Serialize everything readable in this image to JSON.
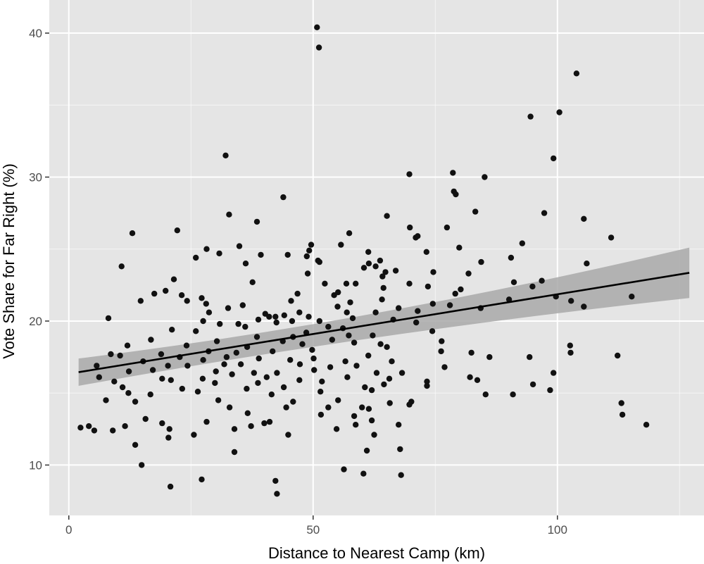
{
  "chart_data": {
    "type": "scatter",
    "xlabel": "Distance to Nearest Camp (km)",
    "ylabel": "Vote Share for Far Right (%)",
    "xlim": [
      -4,
      130
    ],
    "ylim": [
      6.5,
      42.3
    ],
    "x_ticks": [
      0,
      50,
      100
    ],
    "y_ticks": [
      10,
      20,
      30,
      40
    ],
    "x_minor_ticks": [
      25,
      75,
      125
    ],
    "y_minor_ticks": [
      15,
      25,
      35
    ],
    "grid": true,
    "legend": "none",
    "colors": {
      "panel_background": "#e5e5e5",
      "grid": "#ffffff",
      "points": "#111111",
      "fit_line": "#000000",
      "confidence_band": "#a9a9a9"
    },
    "fit": {
      "method": "linear",
      "x": [
        2,
        127
      ],
      "y": [
        16.45,
        23.35
      ],
      "band_lower_at_ends": [
        15.5,
        21.6
      ],
      "band_upper_at_ends": [
        17.4,
        25.1
      ]
    },
    "points": [
      [
        50.8,
        40.4
      ],
      [
        51.2,
        39.0
      ],
      [
        103.9,
        37.2
      ],
      [
        100.4,
        34.5
      ],
      [
        94.5,
        34.2
      ],
      [
        99.2,
        31.3
      ],
      [
        32.1,
        31.5
      ],
      [
        69.7,
        30.2
      ],
      [
        78.6,
        30.3
      ],
      [
        85.1,
        30.0
      ],
      [
        78.8,
        29.0
      ],
      [
        79.2,
        28.8
      ],
      [
        43.9,
        28.6
      ],
      [
        83.2,
        27.6
      ],
      [
        97.3,
        27.5
      ],
      [
        32.8,
        27.4
      ],
      [
        65.1,
        27.3
      ],
      [
        105.4,
        27.1
      ],
      [
        38.5,
        26.9
      ],
      [
        69.8,
        26.5
      ],
      [
        77.4,
        26.5
      ],
      [
        22.2,
        26.3
      ],
      [
        13.0,
        26.1
      ],
      [
        57.4,
        26.1
      ],
      [
        71.0,
        25.8
      ],
      [
        71.4,
        25.9
      ],
      [
        111.0,
        25.8
      ],
      [
        92.8,
        25.4
      ],
      [
        49.6,
        25.3
      ],
      [
        34.9,
        25.2
      ],
      [
        79.9,
        25.1
      ],
      [
        55.7,
        25.3
      ],
      [
        28.2,
        25.0
      ],
      [
        49.2,
        24.9
      ],
      [
        73.2,
        24.8
      ],
      [
        61.3,
        24.8
      ],
      [
        26.0,
        24.4
      ],
      [
        30.8,
        24.7
      ],
      [
        44.8,
        24.6
      ],
      [
        39.3,
        24.6
      ],
      [
        48.7,
        24.5
      ],
      [
        90.5,
        24.4
      ],
      [
        51.0,
        24.2
      ],
      [
        51.3,
        24.1
      ],
      [
        63.7,
        24.2
      ],
      [
        36.2,
        24.0
      ],
      [
        61.4,
        24.0
      ],
      [
        84.4,
        24.1
      ],
      [
        106.0,
        24.0
      ],
      [
        10.8,
        23.8
      ],
      [
        60.4,
        23.7
      ],
      [
        64.8,
        23.4
      ],
      [
        62.8,
        23.8
      ],
      [
        66.9,
        23.5
      ],
      [
        74.6,
        23.4
      ],
      [
        48.9,
        23.3
      ],
      [
        81.8,
        23.3
      ],
      [
        64.2,
        23.1
      ],
      [
        96.8,
        22.8
      ],
      [
        69.7,
        22.6
      ],
      [
        37.6,
        22.7
      ],
      [
        52.4,
        22.6
      ],
      [
        56.8,
        22.6
      ],
      [
        91.1,
        22.7
      ],
      [
        58.7,
        22.6
      ],
      [
        94.9,
        22.4
      ],
      [
        21.5,
        22.9
      ],
      [
        64.4,
        22.3
      ],
      [
        19.8,
        22.1
      ],
      [
        80.2,
        22.2
      ],
      [
        17.5,
        21.9
      ],
      [
        46.8,
        21.9
      ],
      [
        54.3,
        21.8
      ],
      [
        55.1,
        22.0
      ],
      [
        23.1,
        21.8
      ],
      [
        27.2,
        21.6
      ],
      [
        79.1,
        21.9
      ],
      [
        99.7,
        21.7
      ],
      [
        64.1,
        21.5
      ],
      [
        90.1,
        21.5
      ],
      [
        102.8,
        21.4
      ],
      [
        115.2,
        21.7
      ],
      [
        14.7,
        21.4
      ],
      [
        45.5,
        21.4
      ],
      [
        57.6,
        21.3
      ],
      [
        24.2,
        21.4
      ],
      [
        74.5,
        21.2
      ],
      [
        28.1,
        21.2
      ],
      [
        35.6,
        21.1
      ],
      [
        78.0,
        21.1
      ],
      [
        55.0,
        21.0
      ],
      [
        84.3,
        20.9
      ],
      [
        105.4,
        21.0
      ],
      [
        32.6,
        20.9
      ],
      [
        67.5,
        20.9
      ],
      [
        47.2,
        20.6
      ],
      [
        56.9,
        20.6
      ],
      [
        62.8,
        20.6
      ],
      [
        71.4,
        20.7
      ],
      [
        40.2,
        20.5
      ],
      [
        28.7,
        20.6
      ],
      [
        49.1,
        20.3
      ],
      [
        42.3,
        20.3
      ],
      [
        58.1,
        20.2
      ],
      [
        44.1,
        20.4
      ],
      [
        66.4,
        20.1
      ],
      [
        8.1,
        20.2
      ],
      [
        41.0,
        20.3
      ],
      [
        38.8,
        20.1
      ],
      [
        27.5,
        20.0
      ],
      [
        45.7,
        20.0
      ],
      [
        51.3,
        20.0
      ],
      [
        30.9,
        19.8
      ],
      [
        34.7,
        19.8
      ],
      [
        53.1,
        19.6
      ],
      [
        36.1,
        19.6
      ],
      [
        56.1,
        19.5
      ],
      [
        71.1,
        19.9
      ],
      [
        42.5,
        19.9
      ],
      [
        26.0,
        19.3
      ],
      [
        21.1,
        19.4
      ],
      [
        62.2,
        19.0
      ],
      [
        48.6,
        19.2
      ],
      [
        57.3,
        19.0
      ],
      [
        45.9,
        18.9
      ],
      [
        74.4,
        19.3
      ],
      [
        16.8,
        18.7
      ],
      [
        30.3,
        18.6
      ],
      [
        38.5,
        18.9
      ],
      [
        53.9,
        18.7
      ],
      [
        43.8,
        18.6
      ],
      [
        58.4,
        18.5
      ],
      [
        63.8,
        18.4
      ],
      [
        12.0,
        18.3
      ],
      [
        24.1,
        18.3
      ],
      [
        36.5,
        18.2
      ],
      [
        47.8,
        18.4
      ],
      [
        76.3,
        18.6
      ],
      [
        102.6,
        18.3
      ],
      [
        76.2,
        17.9
      ],
      [
        28.6,
        17.9
      ],
      [
        18.9,
        17.7
      ],
      [
        34.3,
        17.8
      ],
      [
        41.7,
        17.9
      ],
      [
        49.8,
        18.0
      ],
      [
        65.1,
        18.2
      ],
      [
        82.4,
        17.8
      ],
      [
        102.7,
        17.8
      ],
      [
        8.6,
        17.7
      ],
      [
        22.7,
        17.5
      ],
      [
        32.3,
        17.5
      ],
      [
        50.1,
        17.4
      ],
      [
        61.3,
        17.6
      ],
      [
        86.1,
        17.5
      ],
      [
        112.3,
        17.6
      ],
      [
        10.5,
        17.6
      ],
      [
        15.2,
        17.2
      ],
      [
        27.5,
        17.3
      ],
      [
        38.9,
        17.4
      ],
      [
        45.3,
        17.3
      ],
      [
        56.6,
        17.2
      ],
      [
        66.1,
        17.2
      ],
      [
        94.3,
        17.5
      ],
      [
        5.7,
        16.9
      ],
      [
        20.3,
        16.9
      ],
      [
        24.3,
        16.9
      ],
      [
        31.8,
        17.0
      ],
      [
        35.2,
        17.0
      ],
      [
        47.3,
        17.0
      ],
      [
        53.5,
        16.8
      ],
      [
        58.9,
        16.9
      ],
      [
        76.9,
        16.8
      ],
      [
        12.3,
        16.5
      ],
      [
        17.2,
        16.6
      ],
      [
        30.1,
        16.5
      ],
      [
        37.9,
        16.4
      ],
      [
        42.6,
        16.4
      ],
      [
        50.2,
        16.6
      ],
      [
        63.0,
        16.4
      ],
      [
        68.2,
        16.4
      ],
      [
        99.2,
        16.4
      ],
      [
        6.2,
        16.1
      ],
      [
        19.1,
        16.0
      ],
      [
        27.4,
        16.0
      ],
      [
        33.4,
        16.3
      ],
      [
        40.5,
        16.1
      ],
      [
        47.2,
        15.9
      ],
      [
        57.0,
        16.1
      ],
      [
        65.6,
        16.0
      ],
      [
        82.1,
        16.1
      ],
      [
        9.3,
        15.8
      ],
      [
        20.9,
        15.9
      ],
      [
        29.9,
        15.7
      ],
      [
        38.7,
        15.7
      ],
      [
        51.8,
        15.8
      ],
      [
        64.5,
        15.6
      ],
      [
        73.3,
        15.8
      ],
      [
        83.6,
        15.9
      ],
      [
        95.0,
        15.6
      ],
      [
        11.0,
        15.4
      ],
      [
        23.2,
        15.3
      ],
      [
        36.4,
        15.3
      ],
      [
        44.0,
        15.4
      ],
      [
        60.6,
        15.4
      ],
      [
        73.3,
        15.5
      ],
      [
        98.5,
        15.2
      ],
      [
        12.2,
        15.0
      ],
      [
        16.7,
        14.9
      ],
      [
        26.4,
        15.1
      ],
      [
        41.5,
        14.9
      ],
      [
        51.5,
        15.1
      ],
      [
        62.0,
        15.2
      ],
      [
        85.3,
        14.9
      ],
      [
        90.9,
        14.9
      ],
      [
        7.6,
        14.5
      ],
      [
        13.6,
        14.4
      ],
      [
        30.6,
        14.5
      ],
      [
        45.9,
        14.4
      ],
      [
        55.1,
        14.5
      ],
      [
        65.7,
        14.3
      ],
      [
        70.1,
        14.4
      ],
      [
        113.1,
        14.3
      ],
      [
        32.9,
        14.0
      ],
      [
        44.5,
        14.0
      ],
      [
        53.1,
        14.0
      ],
      [
        60.0,
        14.0
      ],
      [
        61.4,
        13.9
      ],
      [
        69.7,
        14.2
      ],
      [
        36.6,
        13.6
      ],
      [
        51.6,
        13.5
      ],
      [
        58.4,
        13.4
      ],
      [
        113.3,
        13.5
      ],
      [
        15.7,
        13.2
      ],
      [
        19.1,
        12.9
      ],
      [
        28.2,
        13.0
      ],
      [
        40.0,
        12.9
      ],
      [
        41.1,
        13.0
      ],
      [
        62.0,
        13.1
      ],
      [
        67.5,
        12.8
      ],
      [
        2.4,
        12.6
      ],
      [
        4.1,
        12.7
      ],
      [
        5.2,
        12.4
      ],
      [
        9.0,
        12.4
      ],
      [
        11.5,
        12.7
      ],
      [
        20.6,
        12.5
      ],
      [
        33.9,
        12.5
      ],
      [
        37.3,
        12.7
      ],
      [
        54.8,
        12.5
      ],
      [
        58.7,
        12.8
      ],
      [
        62.5,
        12.1
      ],
      [
        118.2,
        12.8
      ],
      [
        25.6,
        12.1
      ],
      [
        44.9,
        12.1
      ],
      [
        20.4,
        11.9
      ],
      [
        13.6,
        11.4
      ],
      [
        61.0,
        11.0
      ],
      [
        67.8,
        11.1
      ],
      [
        33.9,
        10.9
      ],
      [
        14.9,
        10.0
      ],
      [
        56.3,
        9.7
      ],
      [
        60.3,
        9.4
      ],
      [
        68.0,
        9.3
      ],
      [
        27.2,
        9.0
      ],
      [
        42.3,
        8.9
      ],
      [
        20.8,
        8.5
      ],
      [
        42.6,
        8.0
      ],
      [
        73.5,
        22.4
      ]
    ]
  }
}
